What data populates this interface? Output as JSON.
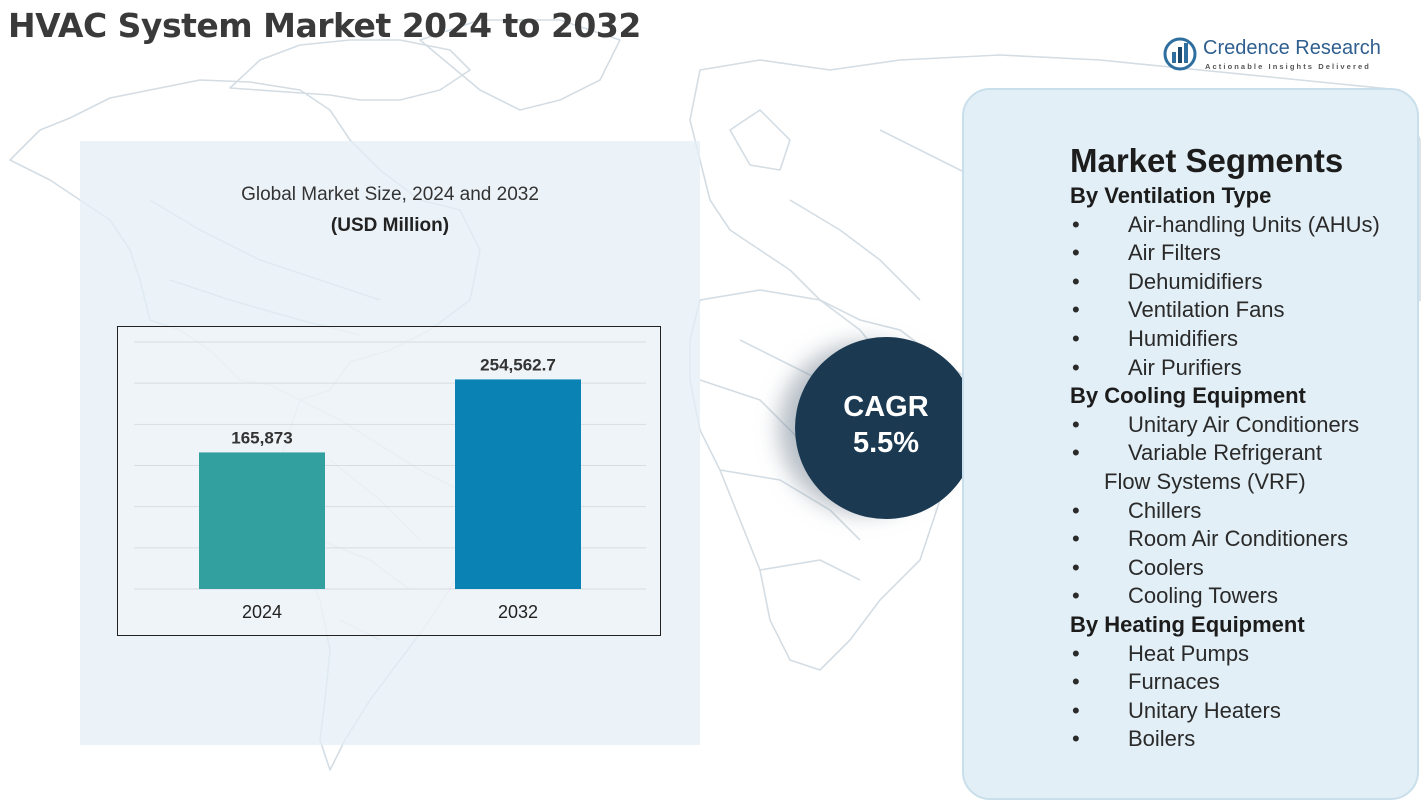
{
  "header": {
    "title": "HVAC System Market 2024 to 2032"
  },
  "logo": {
    "brand": "Credence Research",
    "tagline": "Actionable Insights Delivered"
  },
  "chart_panel": {
    "subtitle": "Global Market Size, 2024 and 2032",
    "unit": "(USD Million)"
  },
  "chart_data": {
    "type": "bar",
    "title": "Global Market Size, 2024 and 2032",
    "ylabel": "(USD Million)",
    "categories": [
      "2024",
      "2032"
    ],
    "values": [
      165873,
      254562.7
    ],
    "value_labels": [
      "165,873",
      "254,562.7"
    ],
    "colors": [
      "#33a0a0",
      "#0b82b4"
    ],
    "ylim": [
      0,
      300000
    ],
    "grid": true
  },
  "cagr": {
    "label": "CAGR",
    "value": "5.5%"
  },
  "segments": {
    "title": "Market Segments",
    "bullet": "•",
    "ventilation": {
      "title": "By Ventilation Type",
      "items": [
        "Air-handling Units (AHUs)",
        "Air Filters",
        "Dehumidifiers",
        "Ventilation Fans",
        "Humidifiers",
        "Air Purifiers"
      ]
    },
    "cooling": {
      "title": "By Cooling Equipment",
      "item_0": "Unitary Air Conditioners",
      "item_1_line1": "Variable Refrigerant",
      "item_1_line2": "Flow Systems (VRF)",
      "item_2": "Chillers",
      "item_3": "Room Air Conditioners",
      "item_4": "Coolers",
      "item_5": "Cooling Towers"
    },
    "heating": {
      "title": "By Heating Equipment",
      "items": [
        "Heat Pumps",
        "Furnaces",
        "Unitary Heaters",
        "Boilers"
      ]
    }
  }
}
